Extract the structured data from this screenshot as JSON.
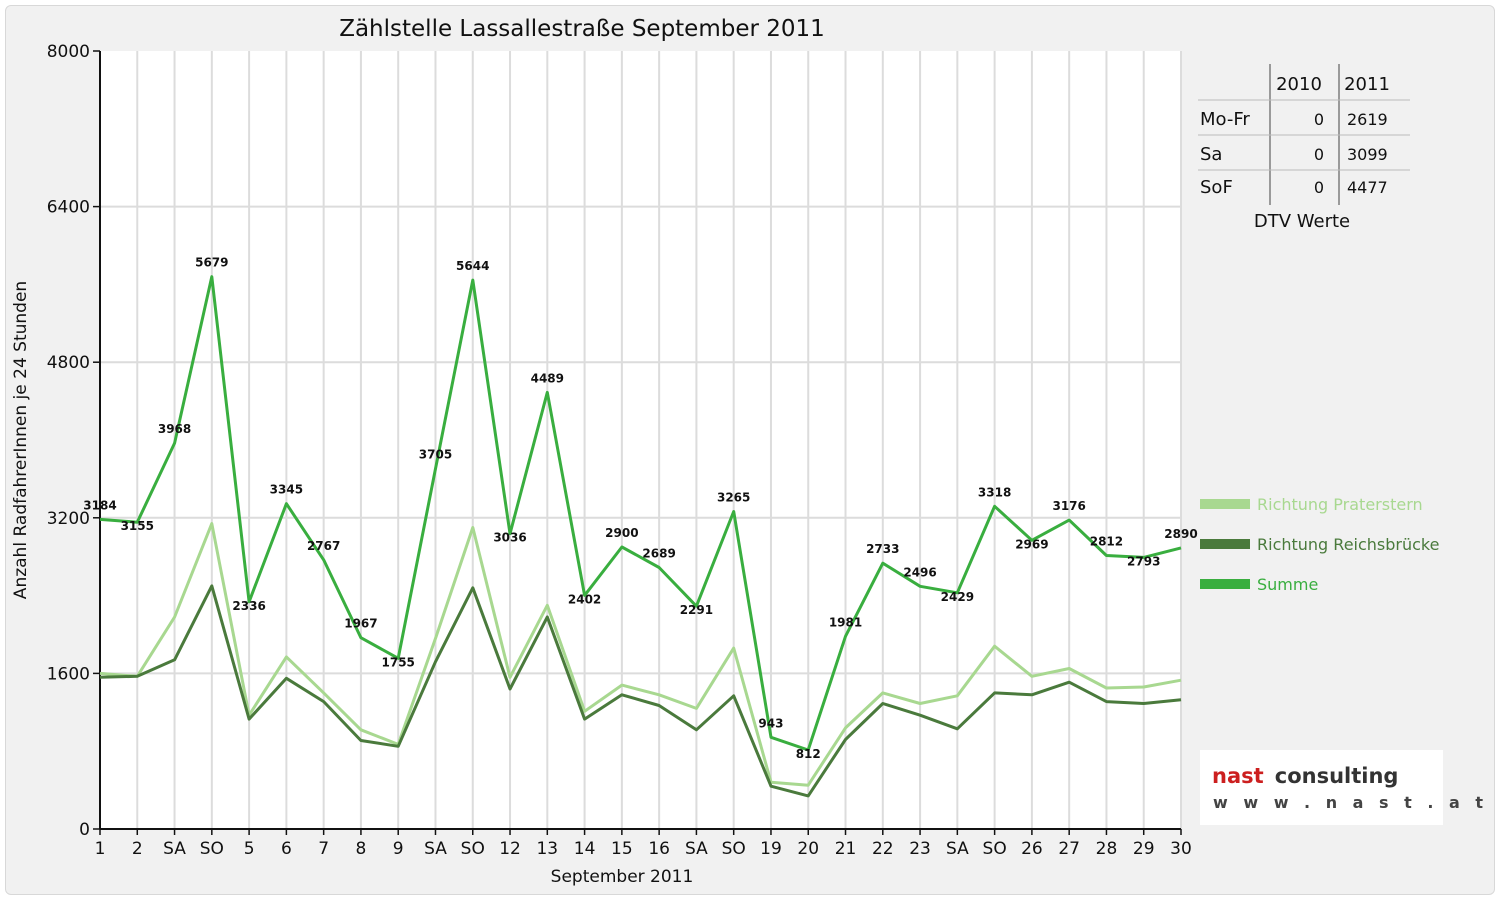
{
  "chart_data": {
    "type": "line",
    "title": "Zählstelle Lassallestraße September 2011",
    "xlabel": "September 2011",
    "ylabel": "Anzahl RadfahrerInnen je 24 Stunden",
    "ylim": [
      0,
      8000
    ],
    "yticks": [
      "0",
      "1600",
      "3200",
      "4800",
      "6400",
      "8000"
    ],
    "categories": [
      "1",
      "2",
      "SA",
      "SO",
      "5",
      "6",
      "7",
      "8",
      "9",
      "SA",
      "SO",
      "12",
      "13",
      "14",
      "15",
      "16",
      "SA",
      "SO",
      "19",
      "20",
      "21",
      "22",
      "23",
      "SA",
      "SO",
      "26",
      "27",
      "28",
      "29",
      "30"
    ],
    "sunday_color": "#e01b1b",
    "grid": true,
    "legend_position": "right",
    "series": [
      {
        "name": "Richtung Praterstern",
        "color": "#a8d890",
        "values": [
          1600,
          1570,
          2180,
          3140,
          1170,
          1770,
          1400,
          1020,
          870,
          1960,
          3100,
          1560,
          2300,
          1210,
          1480,
          1380,
          1240,
          1860,
          480,
          450,
          1040,
          1400,
          1290,
          1370,
          1880,
          1570,
          1650,
          1450,
          1460,
          1530
        ]
      },
      {
        "name": "Richtung Reichsbrücke",
        "color": "#4a7a3c",
        "values": [
          1560,
          1570,
          1740,
          2500,
          1130,
          1550,
          1310,
          910,
          850,
          1720,
          2480,
          1440,
          2180,
          1130,
          1380,
          1270,
          1020,
          1370,
          440,
          340,
          920,
          1290,
          1170,
          1030,
          1400,
          1380,
          1510,
          1310,
          1290,
          1330
        ]
      },
      {
        "name": "Summe",
        "color": "#39ae3f",
        "values": [
          3184,
          3155,
          3968,
          5679,
          2336,
          3345,
          2767,
          1967,
          1755,
          3705,
          5644,
          3036,
          4489,
          2402,
          2900,
          2689,
          2291,
          3265,
          943,
          812,
          1981,
          2733,
          2496,
          2429,
          3318,
          2969,
          3176,
          2812,
          2793,
          2890
        ],
        "labels": [
          "3184",
          "3155",
          "3968",
          "5679",
          "2336",
          "3345",
          "2767",
          "1967",
          "1755",
          "3705",
          "5644",
          "3036",
          "4489",
          "2402",
          "2900",
          "2689",
          "2291",
          "3265",
          "943",
          "812",
          "1981",
          "2733",
          "2496",
          "2429",
          "3318",
          "2969",
          "3176",
          "2812",
          "2793",
          "2890"
        ]
      }
    ]
  },
  "dtv_table": {
    "caption": "DTV Werte",
    "columns": [
      "",
      "2010",
      "2011"
    ],
    "rows": [
      {
        "label": "Mo-Fr",
        "v2010": "0",
        "v2011": "2619"
      },
      {
        "label": "Sa",
        "v2010": "0",
        "v2011": "3099"
      },
      {
        "label": "SoF",
        "v2010": "0",
        "v2011": "4477"
      }
    ]
  },
  "logo": {
    "word1": "nast",
    "word2": "consulting",
    "url": "w w w . n a s t . a t"
  }
}
